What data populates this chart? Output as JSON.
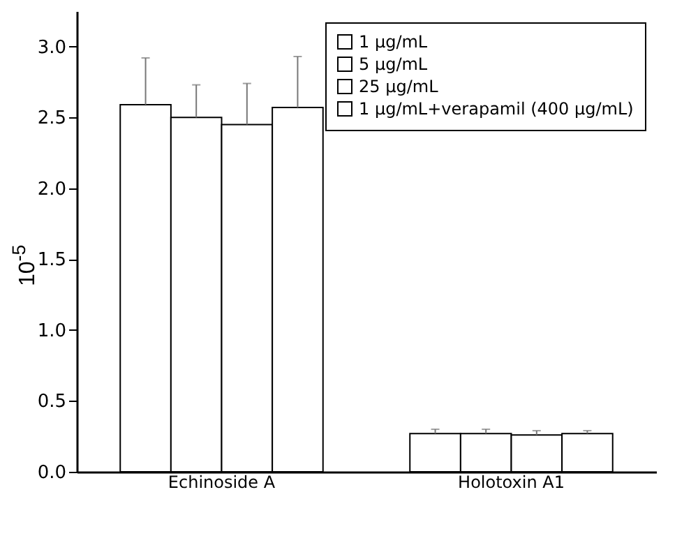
{
  "chart_data": {
    "type": "bar",
    "ylabel": "10$^{-5}$",
    "categories": [
      "Echinoside A",
      "Holotoxin A1"
    ],
    "ylim": [
      0,
      3.25
    ],
    "yticks": [
      {
        "value": 0,
        "label": "0.0"
      },
      {
        "value": 0.5,
        "label": "0.5"
      },
      {
        "value": 1,
        "label": "1.0"
      },
      {
        "value": 1.5,
        "label": "1.5"
      },
      {
        "value": 2,
        "label": "2.0"
      },
      {
        "value": 2.5,
        "label": "2.5"
      },
      {
        "value": 3,
        "label": "3.0"
      }
    ],
    "legend": "top right",
    "grid": false,
    "series": [
      {
        "name": "1 µg/mL",
        "color": "#ffffff",
        "values": [
          2.59,
          0.27
        ],
        "errors": [
          [
            2.59,
            2.92
          ],
          [
            0.27,
            0.3
          ]
        ]
      },
      {
        "name": "5 µg/mL",
        "color": "#ffffff",
        "values": [
          2.5,
          0.27
        ],
        "errors": [
          [
            2.5,
            2.73
          ],
          [
            0.27,
            0.3
          ]
        ]
      },
      {
        "name": "25 µg/mL",
        "color": "#ffffff",
        "values": [
          2.45,
          0.26
        ],
        "errors": [
          [
            2.45,
            2.74
          ],
          [
            0.26,
            0.29
          ]
        ]
      },
      {
        "name": "1 µg/mL+verapamil (400 µg/mL)",
        "color": "#ffffff",
        "values": [
          2.57,
          0.27
        ],
        "errors": [
          [
            2.57,
            2.93
          ],
          [
            0.27,
            0.29
          ]
        ]
      }
    ]
  }
}
